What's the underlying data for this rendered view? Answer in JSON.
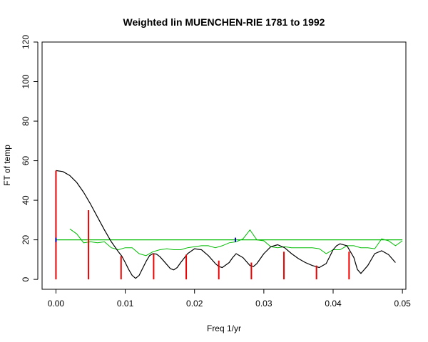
{
  "chart_data": {
    "type": "line",
    "title": "Weighted lin MUENCHEN-RIE 1781 to 1992",
    "xlabel": "Freq 1/yr",
    "ylabel": "FT of temp",
    "xlim": [
      -0.002,
      0.0505
    ],
    "ylim": [
      -5,
      120
    ],
    "xticks": [
      0.0,
      0.01,
      0.02,
      0.03,
      0.04,
      0.05
    ],
    "xtick_labels": [
      "0.00",
      "0.01",
      "0.02",
      "0.03",
      "0.04",
      "0.05"
    ],
    "yticks": [
      0,
      20,
      40,
      60,
      80,
      100,
      120
    ],
    "ytick_labels": [
      "0",
      "20",
      "40",
      "60",
      "80",
      "100",
      "120"
    ],
    "grid": false,
    "legend": "none",
    "colors": {
      "spectrum": "#000000",
      "noise": "#00bb00",
      "threshold": "#00bb00",
      "bars": "#ee0000",
      "markers": "#0000cc"
    },
    "threshold": 20,
    "spectrum": {
      "x": [
        0.0,
        0.001,
        0.002,
        0.003,
        0.004,
        0.005,
        0.006,
        0.007,
        0.008,
        0.009,
        0.0095,
        0.01,
        0.0105,
        0.011,
        0.0115,
        0.012,
        0.013,
        0.0135,
        0.014,
        0.0145,
        0.015,
        0.0155,
        0.016,
        0.0165,
        0.017,
        0.0175,
        0.018,
        0.019,
        0.02,
        0.021,
        0.022,
        0.023,
        0.0235,
        0.024,
        0.025,
        0.0255,
        0.026,
        0.027,
        0.028,
        0.0285,
        0.029,
        0.03,
        0.031,
        0.032,
        0.033,
        0.034,
        0.035,
        0.036,
        0.037,
        0.0375,
        0.038,
        0.039,
        0.04,
        0.0405,
        0.041,
        0.042,
        0.043,
        0.0435,
        0.044,
        0.045,
        0.046,
        0.047,
        0.048,
        0.049
      ],
      "y": [
        55,
        54.5,
        52.5,
        49,
        44,
        38,
        31.5,
        25,
        19,
        14,
        11.8,
        8.5,
        5,
        2,
        0.5,
        2,
        9,
        12,
        13,
        12.8,
        11.5,
        9.5,
        7.5,
        5.5,
        4.8,
        6,
        8.5,
        13,
        15.5,
        15,
        12,
        8,
        6.5,
        6,
        8.5,
        11,
        13,
        11,
        7,
        6.5,
        8,
        13,
        16.5,
        17.5,
        16,
        13,
        10.5,
        8.5,
        7,
        6.5,
        6,
        8,
        15,
        17,
        18,
        17,
        11,
        5,
        3,
        7,
        13,
        14.5,
        12.5,
        8.5
      ]
    },
    "noise": {
      "x": [
        0.002,
        0.003,
        0.004,
        0.005,
        0.006,
        0.007,
        0.008,
        0.009,
        0.01,
        0.011,
        0.012,
        0.013,
        0.014,
        0.015,
        0.016,
        0.017,
        0.018,
        0.019,
        0.02,
        0.021,
        0.022,
        0.023,
        0.024,
        0.025,
        0.026,
        0.027,
        0.028,
        0.029,
        0.03,
        0.031,
        0.032,
        0.033,
        0.034,
        0.035,
        0.036,
        0.037,
        0.038,
        0.039,
        0.04,
        0.041,
        0.042,
        0.043,
        0.044,
        0.045,
        0.046,
        0.047,
        0.048,
        0.049,
        0.05
      ],
      "y": [
        25.5,
        23,
        18.5,
        19,
        18.5,
        19,
        16,
        15,
        16,
        16,
        13,
        12,
        14,
        15,
        15.5,
        15,
        15,
        16,
        16.5,
        17,
        17,
        16,
        17,
        18.5,
        19,
        20.5,
        25,
        20,
        19.5,
        16.5,
        16,
        16.5,
        16,
        16,
        16,
        16,
        15.5,
        13,
        15,
        15,
        17,
        17,
        16,
        16,
        15.5,
        20.5,
        19.5,
        17,
        19.5
      ]
    },
    "bars": {
      "x": [
        0.0,
        0.0047,
        0.0094,
        0.0141,
        0.0188,
        0.0235,
        0.0282,
        0.0329,
        0.0376,
        0.0423
      ],
      "y": [
        55,
        35,
        11.8,
        13,
        12.5,
        9.5,
        8.5,
        14,
        7,
        14
      ]
    },
    "markers": {
      "x": [
        0.0,
        0.0259
      ],
      "y": [
        20,
        20
      ]
    }
  }
}
